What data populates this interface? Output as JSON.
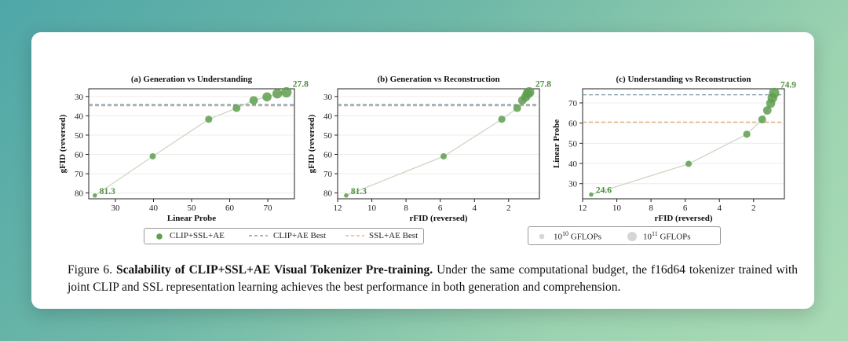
{
  "figure_label": "Figure 6.",
  "caption_title": "Scalability of CLIP+SSL+AE Visual Tokenizer Pre-training.",
  "caption_body": "Under the same computational budget, the f16d64 tokenizer trained with joint CLIP and SSL representation learning achieves the best performance in both generation and comprehension.",
  "colors": {
    "series": "#5f9e4f",
    "line": "#c9d9c2",
    "clip_best": "#6e8fa3",
    "ssl_best": "#e6a86a",
    "label": "#4a8f3c"
  },
  "legend1": {
    "series": "CLIP+SSL+AE",
    "clip_best": "CLIP+AE Best",
    "ssl_best": "SSL+AE Best"
  },
  "legend2": {
    "small": "10",
    "small_exp": "10",
    "small_unit": " GFLOPs",
    "large": "10",
    "large_exp": "11",
    "large_unit": " GFLOPs"
  },
  "chart_data": [
    {
      "type": "scatter",
      "title": "(a) Generation vs Understanding",
      "xlabel": "Linear Probe",
      "ylabel": "gFID (reversed)",
      "xlim": [
        23,
        77
      ],
      "ylim": [
        83,
        26
      ],
      "y_reversed": true,
      "xticks": [
        30,
        40,
        50,
        60,
        70
      ],
      "yticks": [
        30,
        40,
        50,
        60,
        70,
        80
      ],
      "series": [
        {
          "name": "CLIP+SSL+AE",
          "x": [
            24.6,
            39.8,
            54.5,
            61.8,
            66.3,
            69.8,
            72.5,
            74.9
          ],
          "y": [
            81.3,
            61.0,
            41.8,
            36.0,
            32.0,
            30.2,
            28.5,
            27.8
          ],
          "size": [
            1,
            2,
            3,
            4,
            5,
            6,
            7,
            8
          ]
        }
      ],
      "hlines": [
        {
          "name": "CLIP+AE Best",
          "y": 34.2
        },
        {
          "name": "SSL+AE Best",
          "y": 34.8
        }
      ],
      "annotations": [
        {
          "text": "81.3",
          "x": 24.6,
          "y": 81.3
        },
        {
          "text": "27.8",
          "x": 74.9,
          "y": 27.8
        }
      ]
    },
    {
      "type": "scatter",
      "title": "(b) Generation vs Reconstruction",
      "xlabel": "rFID (reversed)",
      "ylabel": "gFID (reversed)",
      "xlim": [
        12,
        0.2
      ],
      "ylim": [
        83,
        26
      ],
      "x_reversed": true,
      "y_reversed": true,
      "xticks": [
        12,
        10,
        8,
        6,
        4,
        2
      ],
      "yticks": [
        30,
        40,
        50,
        60,
        70,
        80
      ],
      "series": [
        {
          "name": "CLIP+SSL+AE",
          "x": [
            11.5,
            5.8,
            2.4,
            1.5,
            1.2,
            1.0,
            0.9,
            0.8
          ],
          "y": [
            81.3,
            61.0,
            41.8,
            36.0,
            32.0,
            30.2,
            28.5,
            27.8
          ],
          "size": [
            1,
            2,
            3,
            4,
            5,
            6,
            7,
            8
          ]
        }
      ],
      "hlines": [
        {
          "name": "CLIP+AE Best",
          "y": 34.2
        },
        {
          "name": "SSL+AE Best",
          "y": 34.8
        }
      ],
      "annotations": [
        {
          "text": "81.3",
          "x": 11.5,
          "y": 81.3
        },
        {
          "text": "27.8",
          "x": 0.8,
          "y": 27.8
        }
      ]
    },
    {
      "type": "scatter",
      "title": "(c) Understanding vs Reconstruction",
      "xlabel": "rFID (reversed)",
      "ylabel": "Linear Probe",
      "xlim": [
        12,
        0.2
      ],
      "ylim": [
        22.5,
        77
      ],
      "x_reversed": true,
      "xticks": [
        12,
        10,
        8,
        6,
        4,
        2
      ],
      "yticks": [
        30,
        40,
        50,
        60,
        70
      ],
      "series": [
        {
          "name": "CLIP+SSL+AE",
          "x": [
            11.5,
            5.8,
            2.4,
            1.5,
            1.2,
            1.0,
            0.9,
            0.8
          ],
          "y": [
            24.6,
            39.8,
            54.5,
            61.8,
            66.3,
            69.8,
            72.5,
            74.9
          ],
          "size": [
            1,
            2,
            3,
            4,
            5,
            6,
            7,
            8
          ]
        }
      ],
      "hlines": [
        {
          "name": "CLIP+AE Best",
          "y": 74.0
        },
        {
          "name": "SSL+AE Best",
          "y": 60.5
        }
      ],
      "annotations": [
        {
          "text": "24.6",
          "x": 11.5,
          "y": 24.6
        },
        {
          "text": "74.9",
          "x": 0.8,
          "y": 74.9
        }
      ]
    }
  ]
}
